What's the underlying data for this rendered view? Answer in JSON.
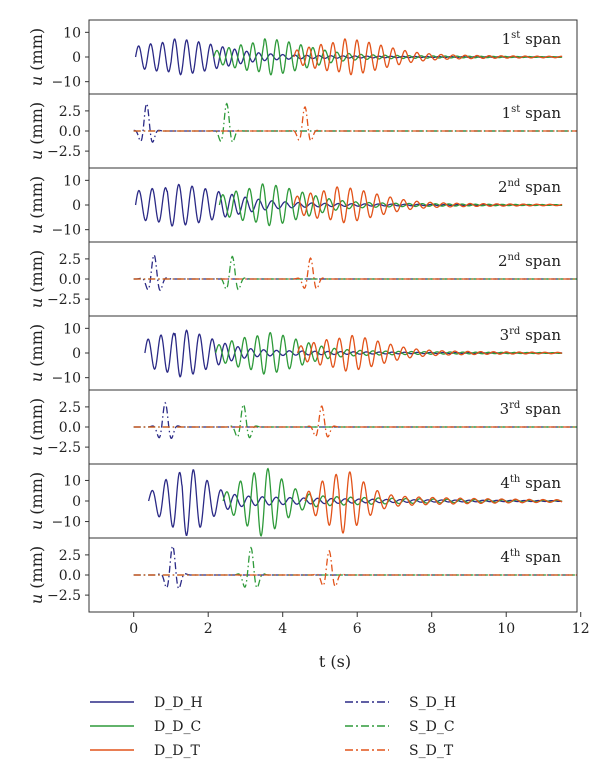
{
  "colors": {
    "D_D_H": "#2b2a86",
    "D_D_C": "#2e9a3a",
    "D_D_T": "#e2531a",
    "S_D_H": "#2b2a86",
    "S_D_C": "#2e9a3a",
    "S_D_T": "#e2531a",
    "frame": "#333333",
    "text": "#222222"
  },
  "chart_data": {
    "type": "line",
    "xlabel": "t (s)",
    "xlim": [
      -1.2,
      11.9
    ],
    "xticks": [
      0,
      2,
      4,
      6,
      8,
      10,
      12
    ],
    "ylabel_text": "u (mm)",
    "legend": {
      "placement": "bottom",
      "entries": [
        {
          "name": "D_D_H",
          "style": "solid"
        },
        {
          "name": "S_D_H",
          "style": "dashdot"
        },
        {
          "name": "D_D_C",
          "style": "solid"
        },
        {
          "name": "S_D_C",
          "style": "dashdot"
        },
        {
          "name": "D_D_T",
          "style": "solid"
        },
        {
          "name": "S_D_T",
          "style": "dashdot"
        }
      ]
    },
    "panels": [
      {
        "label_num": "1",
        "label_sup": "st",
        "label_word": "span",
        "ylim": [
          -15,
          15
        ],
        "yticks": [
          10,
          0,
          -10
        ],
        "ytick_labels": [
          "10",
          "0",
          "−10"
        ],
        "series": [
          {
            "name": "D_D_H",
            "t0": 0.05,
            "tend": 11.5,
            "freq": 3.1,
            "gc": 1.0,
            "gw": 1.6,
            "amp": 6,
            "decay": 0.35
          },
          {
            "name": "D_D_C",
            "t0": 2.15,
            "tend": 11.5,
            "freq": 3.1,
            "gc": 3.5,
            "gw": 1.4,
            "amp": 6,
            "decay": 0.35
          },
          {
            "name": "D_D_T",
            "t0": 4.3,
            "tend": 11.5,
            "freq": 3.1,
            "gc": 5.6,
            "gw": 1.4,
            "amp": 6,
            "decay": 0.35
          }
        ]
      },
      {
        "label_num": "1",
        "label_sup": "st",
        "label_word": "span",
        "ylim": [
          -4.6,
          4.6
        ],
        "yticks": [
          2.5,
          0,
          -2.5
        ],
        "ytick_labels": [
          "2.5",
          "0.0",
          "−2.5"
        ],
        "series": [
          {
            "name": "S_D_H",
            "t0": 0.0,
            "tend": 11.9,
            "freq": 2.6,
            "gc": 0.35,
            "gw": 0.18,
            "amp": 3.4,
            "decay": 0
          },
          {
            "name": "S_D_C",
            "t0": 0.0,
            "tend": 11.9,
            "freq": 2.6,
            "gc": 2.5,
            "gw": 0.18,
            "amp": 3.4,
            "decay": 0
          },
          {
            "name": "S_D_T",
            "t0": 0.0,
            "tend": 11.9,
            "freq": 2.6,
            "gc": 4.6,
            "gw": 0.18,
            "amp": 3.0,
            "decay": 0
          }
        ]
      },
      {
        "label_num": "2",
        "label_sup": "nd",
        "label_word": "span",
        "ylim": [
          -15,
          15
        ],
        "yticks": [
          10,
          0,
          -10
        ],
        "ytick_labels": [
          "10",
          "0",
          "−10"
        ],
        "series": [
          {
            "name": "D_D_H",
            "t0": 0.05,
            "tend": 11.5,
            "freq": 2.8,
            "gc": 0.9,
            "gw": 1.8,
            "amp": 7,
            "decay": 0.35
          },
          {
            "name": "D_D_C",
            "t0": 2.3,
            "tend": 11.5,
            "freq": 2.8,
            "gc": 3.4,
            "gw": 1.4,
            "amp": 7,
            "decay": 0.35
          },
          {
            "name": "D_D_T",
            "t0": 4.3,
            "tend": 11.5,
            "freq": 2.8,
            "gc": 5.4,
            "gw": 1.4,
            "amp": 6,
            "decay": 0.35
          }
        ]
      },
      {
        "label_num": "2",
        "label_sup": "nd",
        "label_word": "span",
        "ylim": [
          -4.6,
          4.6
        ],
        "yticks": [
          2.5,
          0,
          -2.5
        ],
        "ytick_labels": [
          "2.5",
          "0.0",
          "−2.5"
        ],
        "series": [
          {
            "name": "S_D_H",
            "t0": 0.0,
            "tend": 11.9,
            "freq": 2.6,
            "gc": 0.55,
            "gw": 0.2,
            "amp": 3.0,
            "decay": 0
          },
          {
            "name": "S_D_C",
            "t0": 0.0,
            "tend": 11.9,
            "freq": 2.6,
            "gc": 2.65,
            "gw": 0.2,
            "amp": 2.8,
            "decay": 0
          },
          {
            "name": "S_D_T",
            "t0": 0.0,
            "tend": 11.9,
            "freq": 2.6,
            "gc": 4.75,
            "gw": 0.2,
            "amp": 2.6,
            "decay": 0
          }
        ]
      },
      {
        "label_num": "3",
        "label_sup": "rd",
        "label_word": "span",
        "ylim": [
          -15,
          15
        ],
        "yticks": [
          10,
          0,
          -10
        ],
        "ytick_labels": [
          "10",
          "0",
          "−10"
        ],
        "series": [
          {
            "name": "D_D_H",
            "t0": 0.3,
            "tend": 11.5,
            "freq": 2.9,
            "gc": 1.1,
            "gw": 1.2,
            "amp": 8,
            "decay": 0.35
          },
          {
            "name": "D_D_C",
            "t0": 2.2,
            "tend": 11.5,
            "freq": 2.9,
            "gc": 3.4,
            "gw": 1.3,
            "amp": 7,
            "decay": 0.35
          },
          {
            "name": "D_D_T",
            "t0": 4.4,
            "tend": 11.5,
            "freq": 2.9,
            "gc": 5.6,
            "gw": 1.3,
            "amp": 6,
            "decay": 0.35
          }
        ]
      },
      {
        "label_num": "3",
        "label_sup": "rd",
        "label_word": "span",
        "ylim": [
          -4.6,
          4.6
        ],
        "yticks": [
          2.5,
          0,
          -2.5
        ],
        "ytick_labels": [
          "2.5",
          "0.0",
          "−2.5"
        ],
        "series": [
          {
            "name": "S_D_H",
            "t0": 0.0,
            "tend": 11.9,
            "freq": 2.6,
            "gc": 0.85,
            "gw": 0.2,
            "amp": 3.0,
            "decay": 0
          },
          {
            "name": "S_D_C",
            "t0": 0.0,
            "tend": 11.9,
            "freq": 2.6,
            "gc": 2.95,
            "gw": 0.2,
            "amp": 2.8,
            "decay": 0
          },
          {
            "name": "S_D_T",
            "t0": 0.0,
            "tend": 11.9,
            "freq": 2.6,
            "gc": 5.05,
            "gw": 0.2,
            "amp": 2.6,
            "decay": 0
          }
        ]
      },
      {
        "label_num": "4",
        "label_sup": "th",
        "label_word": "span",
        "ylim": [
          -18,
          18
        ],
        "yticks": [
          10,
          0,
          -10
        ],
        "ytick_labels": [
          "10",
          "0",
          "−10"
        ],
        "series": [
          {
            "name": "D_D_H",
            "t0": 0.4,
            "tend": 11.5,
            "freq": 2.7,
            "gc": 1.3,
            "gw": 0.8,
            "amp": 14,
            "decay": 0.3
          },
          {
            "name": "D_D_C",
            "t0": 2.4,
            "tend": 11.5,
            "freq": 2.7,
            "gc": 3.35,
            "gw": 0.8,
            "amp": 14,
            "decay": 0.3
          },
          {
            "name": "D_D_T",
            "t0": 4.6,
            "tend": 11.5,
            "freq": 2.7,
            "gc": 5.5,
            "gw": 0.8,
            "amp": 13,
            "decay": 0.3
          }
        ]
      },
      {
        "label_num": "4",
        "label_sup": "th",
        "label_word": "span",
        "ylim": [
          -4.6,
          4.6
        ],
        "yticks": [
          2.5,
          0,
          -2.5
        ],
        "ytick_labels": [
          "2.5",
          "0.0",
          "−2.5"
        ],
        "series": [
          {
            "name": "S_D_H",
            "t0": 0.0,
            "tend": 11.9,
            "freq": 2.6,
            "gc": 1.05,
            "gw": 0.2,
            "amp": 3.6,
            "decay": 0
          },
          {
            "name": "S_D_C",
            "t0": 0.0,
            "tend": 11.9,
            "freq": 2.6,
            "gc": 3.15,
            "gw": 0.2,
            "amp": 3.4,
            "decay": 0
          },
          {
            "name": "S_D_T",
            "t0": 0.0,
            "tend": 11.9,
            "freq": 2.6,
            "gc": 5.25,
            "gw": 0.2,
            "amp": 3.0,
            "decay": 0
          }
        ]
      }
    ]
  }
}
